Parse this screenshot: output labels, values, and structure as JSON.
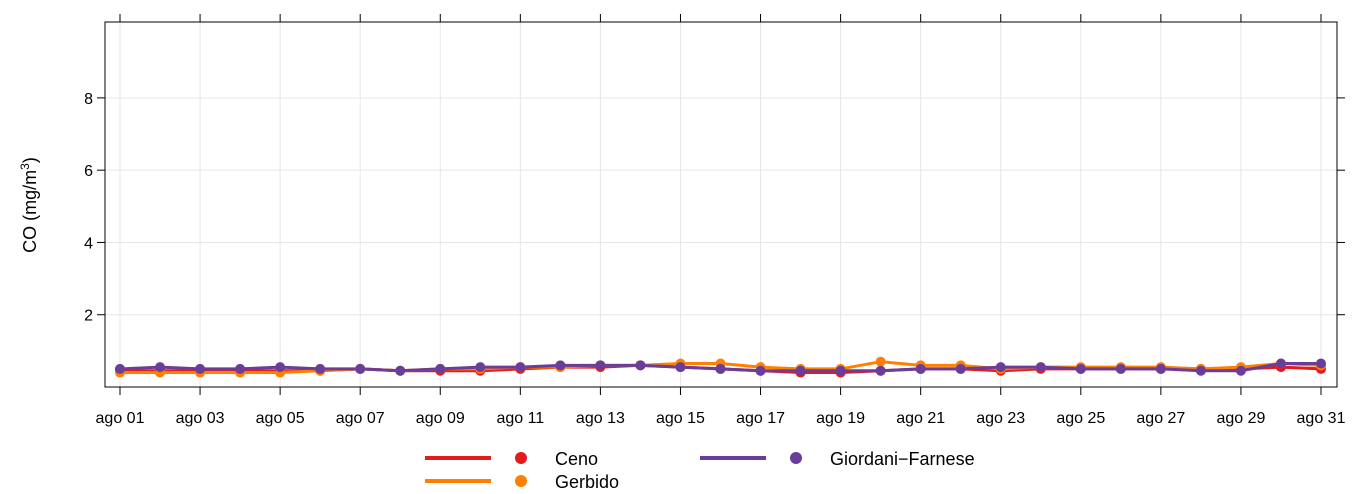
{
  "chart_data": {
    "type": "line",
    "y_label": "CO (mg/m",
    "y_label_sup": "3",
    "y_label_end": ")",
    "categories": [
      "ago 01",
      null,
      "ago 03",
      null,
      "ago 05",
      null,
      "ago 07",
      null,
      "ago 09",
      null,
      "ago 11",
      null,
      "ago 13",
      null,
      "ago 15",
      null,
      "ago 17",
      null,
      "ago 19",
      null,
      "ago 21",
      null,
      "ago 23",
      null,
      "ago 25",
      null,
      "ago 27",
      null,
      "ago 29",
      null,
      "ago 31"
    ],
    "series": [
      {
        "name": "Ceno",
        "color": "#e41a1c",
        "values": [
          0.45,
          0.45,
          0.45,
          0.45,
          0.45,
          0.45,
          0.5,
          0.45,
          0.45,
          0.45,
          0.5,
          0.55,
          0.55,
          0.6,
          0.55,
          0.5,
          0.45,
          0.4,
          0.4,
          0.45,
          0.5,
          0.5,
          0.45,
          0.5,
          0.5,
          0.5,
          0.5,
          0.5,
          0.5,
          0.55,
          0.5
        ]
      },
      {
        "name": "Gerbido",
        "color": "#ff7f00",
        "values": [
          0.4,
          0.4,
          0.4,
          0.4,
          0.4,
          0.45,
          0.5,
          0.45,
          0.5,
          0.5,
          0.55,
          0.55,
          0.6,
          0.6,
          0.65,
          0.65,
          0.55,
          0.5,
          0.5,
          0.7,
          0.6,
          0.6,
          0.5,
          0.55,
          0.55,
          0.55,
          0.55,
          0.5,
          0.55,
          0.65,
          0.6
        ]
      },
      {
        "name": "Giordani−Farnese",
        "color": "#6a3d9a",
        "values": [
          0.5,
          0.55,
          0.5,
          0.5,
          0.55,
          0.5,
          0.5,
          0.45,
          0.5,
          0.55,
          0.55,
          0.6,
          0.6,
          0.6,
          0.55,
          0.5,
          0.45,
          0.45,
          0.45,
          0.45,
          0.5,
          0.5,
          0.55,
          0.55,
          0.5,
          0.5,
          0.5,
          0.45,
          0.45,
          0.65,
          0.65
        ]
      }
    ],
    "ylim": [
      0,
      10.1
    ],
    "yticks": [
      2,
      4,
      6,
      8
    ],
    "grid": true
  }
}
